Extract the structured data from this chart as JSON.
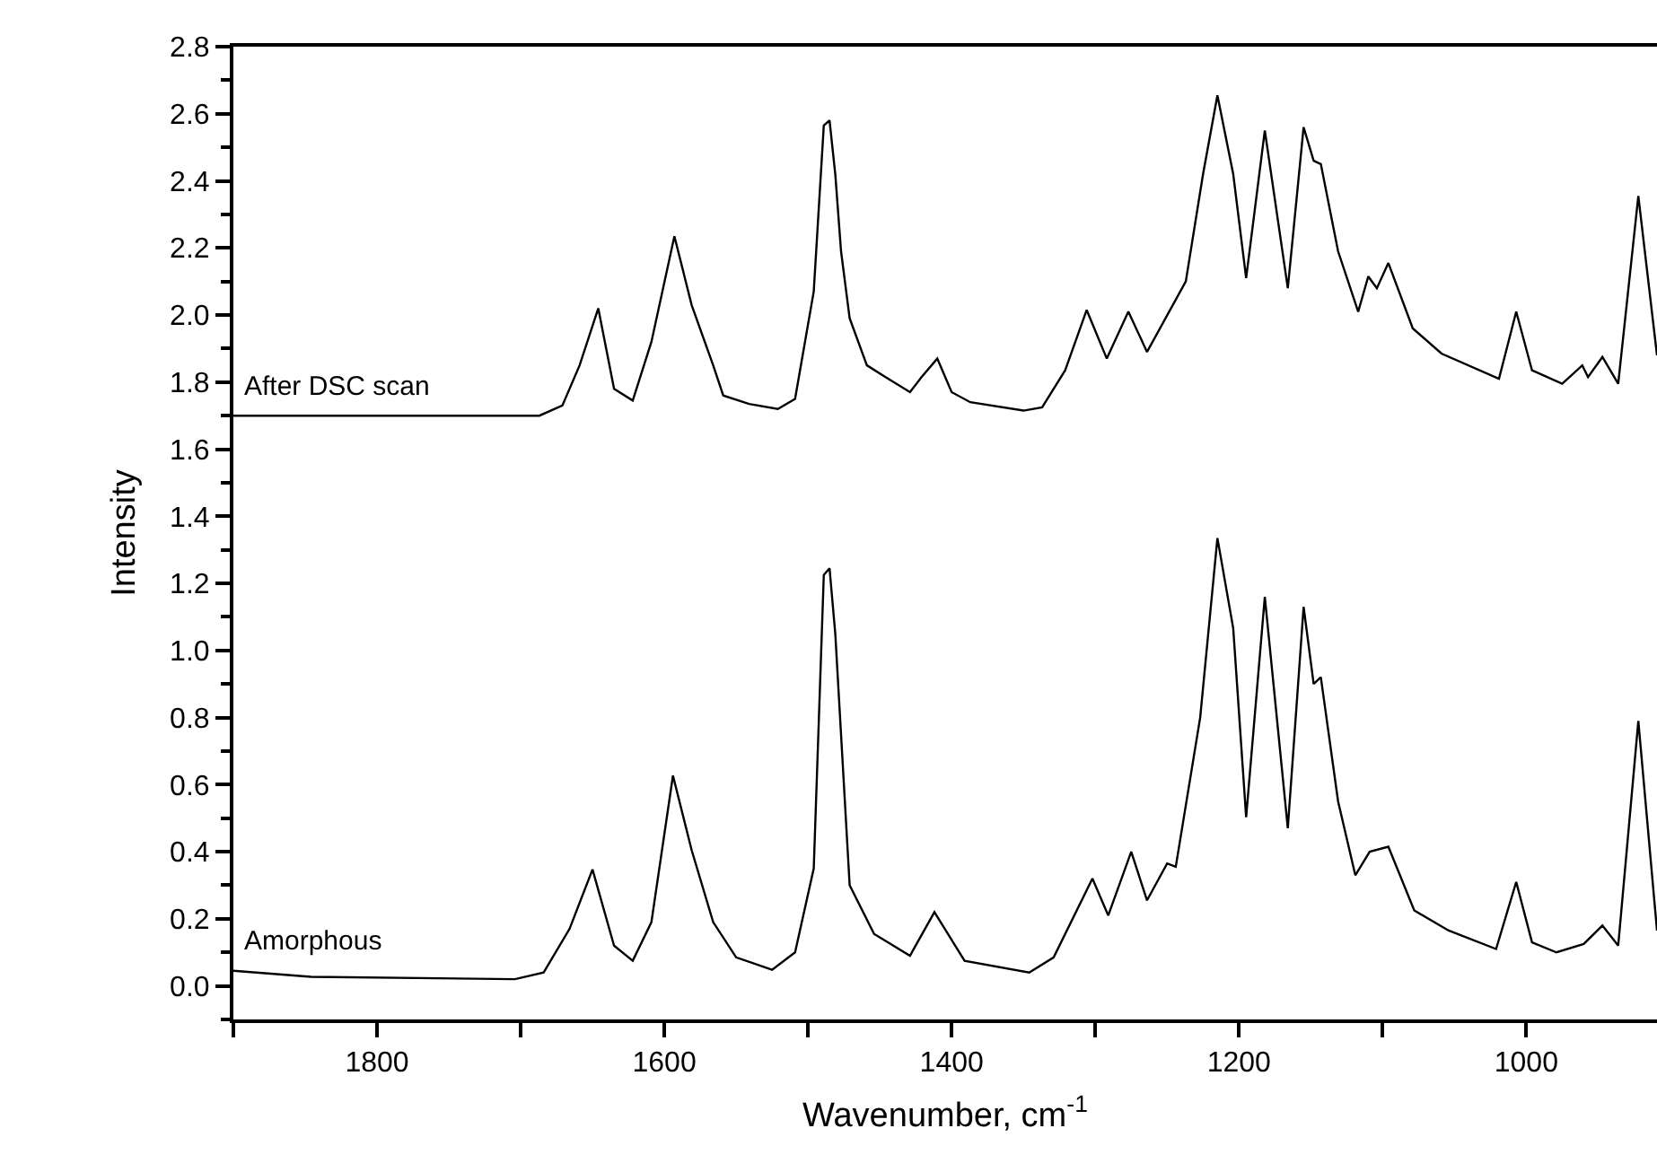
{
  "chart_data": {
    "type": "line",
    "xlabel": "Wavenumber, cm$^{-1}$",
    "ylabel": "Intensity",
    "xlim": [
      1900,
      909
    ],
    "ylim": [
      -0.1,
      2.8
    ],
    "xticks": [
      {
        "value": 1900,
        "label": null
      },
      1800,
      {
        "value": 1700,
        "label": null
      },
      1600,
      {
        "value": 1500,
        "label": null
      },
      1400,
      {
        "value": 1300,
        "label": null
      },
      1200,
      {
        "value": 1100,
        "label": null
      },
      1000
    ],
    "yticks": [
      {
        "value": -0.1,
        "label": null
      },
      {
        "value": 0,
        "label": "0.0"
      },
      {
        "value": 0.1,
        "label": null
      },
      {
        "value": 0.2,
        "label": "0.2"
      },
      {
        "value": 0.3,
        "label": null
      },
      {
        "value": 0.4,
        "label": "0.4"
      },
      {
        "value": 0.5,
        "label": null
      },
      {
        "value": 0.6,
        "label": "0.6"
      },
      {
        "value": 0.7,
        "label": null
      },
      {
        "value": 0.8,
        "label": "0.8"
      },
      {
        "value": 0.9,
        "label": null
      },
      {
        "value": 1.0,
        "label": "1.0"
      },
      {
        "value": 1.1,
        "label": null
      },
      {
        "value": 1.2,
        "label": "1.2"
      },
      {
        "value": 1.3,
        "label": null
      },
      {
        "value": 1.4,
        "label": "1.4"
      },
      {
        "value": 1.5,
        "label": null
      },
      {
        "value": 1.6,
        "label": "1.6"
      },
      {
        "value": 1.7,
        "label": null
      },
      {
        "value": 1.8,
        "label": "1.8"
      },
      {
        "value": 1.9,
        "label": null
      },
      {
        "value": 2.0,
        "label": "2.0"
      },
      {
        "value": 2.1,
        "label": null
      },
      {
        "value": 2.2,
        "label": "2.2"
      },
      {
        "value": 2.3,
        "label": null
      },
      {
        "value": 2.4,
        "label": "2.4"
      },
      {
        "value": 2.5,
        "label": null
      },
      {
        "value": 2.6,
        "label": "2.6"
      },
      {
        "value": 2.7,
        "label": null
      },
      {
        "value": 2.8,
        "label": "2.8"
      }
    ],
    "grid": false,
    "legend": false,
    "marker": "none",
    "line_style": "solid",
    "series": [
      {
        "name": "After DSC scan",
        "color": "#000000",
        "x": [
          1900,
          1687,
          1671,
          1659,
          1646,
          1635,
          1622,
          1609,
          1593,
          1581,
          1566,
          1559,
          1541,
          1521,
          1509,
          1496,
          1489,
          1485,
          1481,
          1477,
          1471,
          1459,
          1446,
          1429,
          1421,
          1410,
          1400,
          1387,
          1350,
          1337,
          1321,
          1306,
          1292,
          1277,
          1264,
          1237,
          1225,
          1215,
          1204,
          1195,
          1182,
          1166,
          1155,
          1148,
          1143,
          1131,
          1117,
          1110,
          1104,
          1096,
          1079,
          1059,
          1019,
          1007,
          996,
          975,
          961,
          957,
          947,
          936,
          922,
          909
        ],
        "values": [
          1.7,
          1.7,
          1.73,
          1.85,
          2.02,
          1.78,
          1.745,
          1.92,
          2.235,
          2.03,
          1.85,
          1.76,
          1.735,
          1.72,
          1.75,
          2.07,
          2.565,
          2.58,
          2.42,
          2.19,
          1.99,
          1.85,
          1.815,
          1.77,
          1.815,
          1.87,
          1.77,
          1.74,
          1.715,
          1.725,
          1.835,
          2.015,
          1.87,
          2.01,
          1.89,
          2.1,
          2.42,
          2.655,
          2.42,
          2.11,
          2.55,
          2.08,
          2.56,
          2.46,
          2.45,
          2.19,
          2.01,
          2.115,
          2.08,
          2.155,
          1.96,
          1.885,
          1.81,
          2.01,
          1.835,
          1.795,
          1.85,
          1.815,
          1.875,
          1.795,
          2.355,
          1.88
        ]
      },
      {
        "name": "Amorphous",
        "color": "#000000",
        "x": [
          1900,
          1846,
          1704,
          1684,
          1666,
          1650,
          1635,
          1622,
          1609,
          1594,
          1581,
          1566,
          1550,
          1525,
          1509,
          1496,
          1489,
          1485,
          1481,
          1471,
          1454,
          1429,
          1412,
          1391,
          1346,
          1329,
          1302,
          1291,
          1275,
          1264,
          1250,
          1244,
          1227,
          1215,
          1204,
          1195,
          1182,
          1166,
          1155,
          1148,
          1143,
          1131,
          1119,
          1109,
          1096,
          1078,
          1054,
          1021,
          1007,
          996,
          979,
          960,
          947,
          936,
          922,
          909
        ],
        "values": [
          0.045,
          0.027,
          0.02,
          0.04,
          0.17,
          0.347,
          0.12,
          0.075,
          0.19,
          0.627,
          0.405,
          0.19,
          0.085,
          0.048,
          0.1,
          0.35,
          1.225,
          1.245,
          1.05,
          0.3,
          0.155,
          0.09,
          0.22,
          0.075,
          0.04,
          0.085,
          0.32,
          0.21,
          0.4,
          0.255,
          0.365,
          0.355,
          0.8,
          1.335,
          1.066,
          0.503,
          1.16,
          0.47,
          1.13,
          0.9,
          0.92,
          0.55,
          0.33,
          0.4,
          0.415,
          0.225,
          0.165,
          0.11,
          0.31,
          0.13,
          0.1,
          0.125,
          0.18,
          0.12,
          0.79,
          0.165
        ]
      }
    ]
  }
}
